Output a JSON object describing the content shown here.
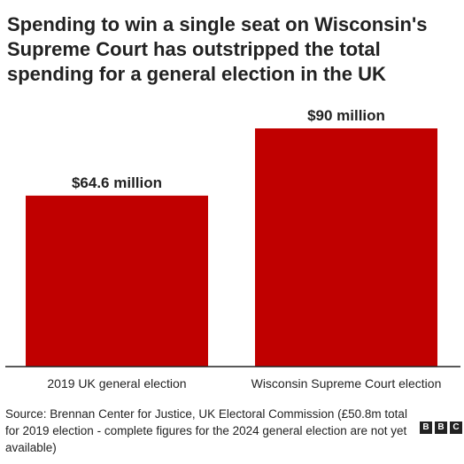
{
  "title": "Spending to win a single seat on Wisconsin's Supreme Court has outstripped the total spending for a general election in the UK",
  "source": "Source: Brennan Center for Justice, UK Electoral Commission (£50.8m total for 2019 election - complete figures for the 2024 general election are not yet available)",
  "logo": [
    "B",
    "B",
    "C"
  ],
  "colors": {
    "bar": "#c00000",
    "axis": "#222222",
    "text": "#222222"
  },
  "chart_data": {
    "type": "bar",
    "categories": [
      "2019 UK general election",
      "Wisconsin Supreme Court election"
    ],
    "values": [
      64.6,
      90
    ],
    "data_labels": [
      "$64.6 million",
      "$90 million"
    ],
    "ylim": [
      0,
      90
    ],
    "grid": false,
    "legend": "none"
  }
}
